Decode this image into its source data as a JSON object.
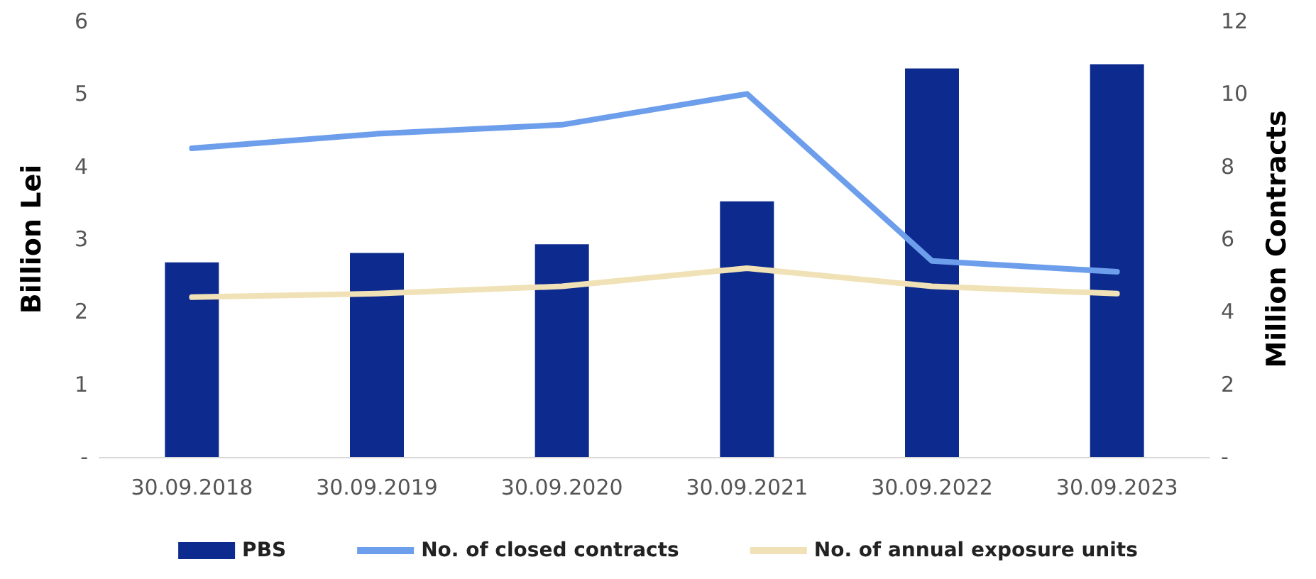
{
  "chart_data": {
    "type": "bar",
    "ylabel": "Billion Lei",
    "y2label": "Million Contracts",
    "categories": [
      "30.09.2018",
      "30.09.2019",
      "30.09.2020",
      "30.09.2021",
      "30.09.2022",
      "30.09.2023"
    ],
    "series": [
      {
        "name": "PBS",
        "color": "#0d2b8e",
        "values": [
          2.68,
          2.81,
          2.93,
          3.52,
          5.35,
          5.41
        ]
      },
      {
        "name": "No. of closed contracts",
        "type": "line",
        "axis": "y2",
        "color": "#6d9eeb",
        "values": [
          8.5,
          8.9,
          9.15,
          10.0,
          5.4,
          5.1
        ]
      },
      {
        "name": "No. of annual exposure units",
        "type": "line",
        "axis": "y2",
        "color": "#f0e2b6",
        "values": [
          4.4,
          4.5,
          4.7,
          5.2,
          4.7,
          4.5
        ]
      }
    ],
    "ylim": [
      0,
      6
    ],
    "yticks": [
      {
        "value": 0,
        "label": "-"
      },
      1,
      2,
      3,
      4,
      5,
      6
    ],
    "y2lim": [
      0,
      12
    ],
    "y2ticks": [
      {
        "value": 0,
        "label": "-"
      },
      2,
      4,
      6,
      8,
      10,
      12
    ],
    "grid": false,
    "legend": "bottom",
    "marker": "none",
    "line_style": "solid"
  }
}
